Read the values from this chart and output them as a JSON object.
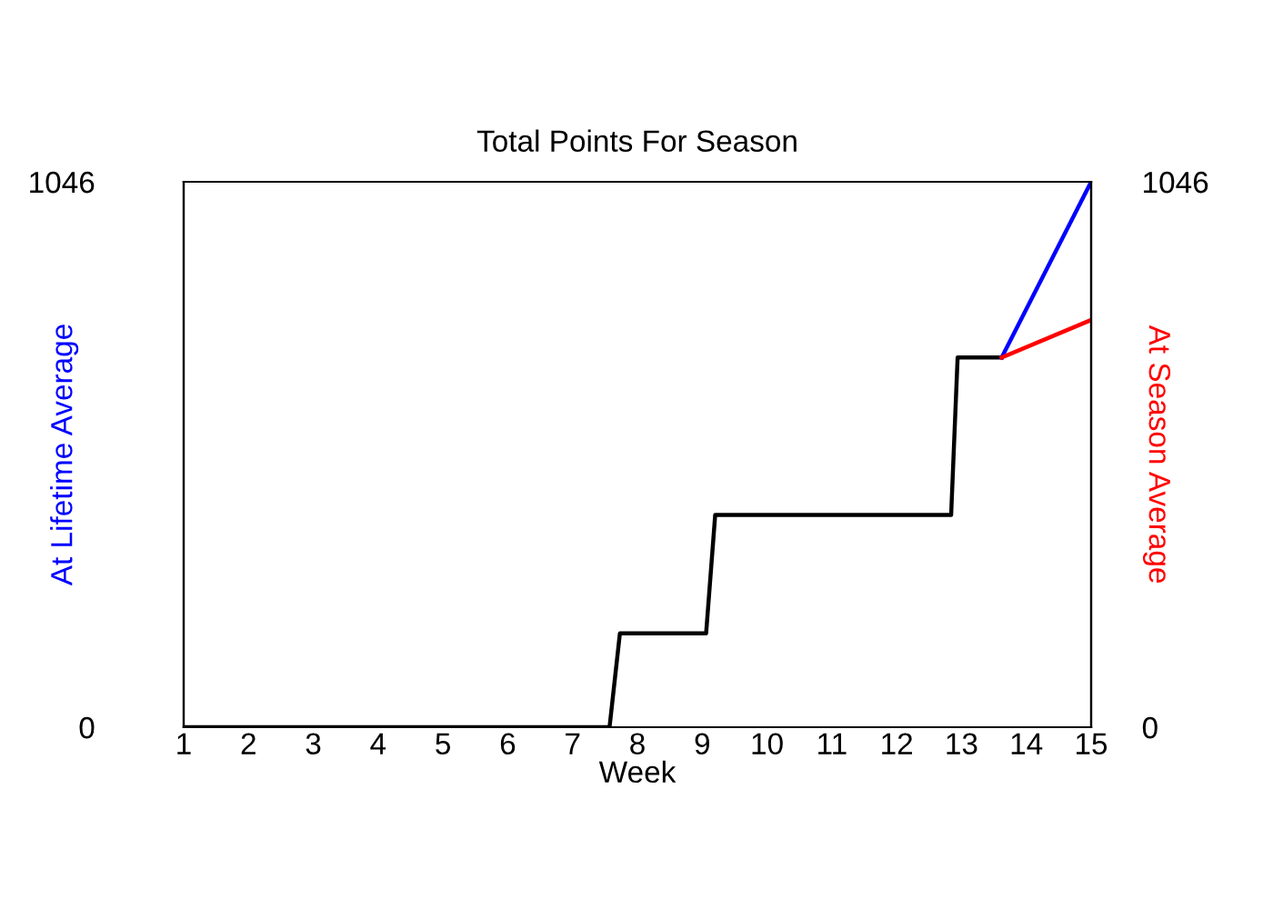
{
  "chart_data": {
    "type": "line",
    "title": "Total Points For Season",
    "xlabel": "Week",
    "ylabel": "At Lifetime Average",
    "y2label": "At Season Average",
    "series": [
      {
        "color": "#000000",
        "x": [
          1,
          7.57,
          7.73,
          9.06,
          9.2,
          12.84,
          12.94,
          13.62
        ],
        "values": [
          0,
          0,
          180,
          180,
          407,
          407,
          709,
          709
        ]
      },
      {
        "color": "#0000ff",
        "x": [
          13.62,
          15
        ],
        "values": [
          709,
          1046
        ]
      },
      {
        "color": "#ff0000",
        "axis": "y2",
        "x": [
          13.62,
          15
        ],
        "values": [
          709,
          781
        ]
      }
    ],
    "xlim": [
      1,
      15
    ],
    "xticks": [
      1,
      2,
      3,
      4,
      5,
      6,
      7,
      8,
      9,
      10,
      11,
      12,
      13,
      14,
      15
    ],
    "ylim": [
      0,
      1046
    ],
    "yticks": [
      0,
      1046
    ],
    "y2lim": [
      0,
      1046
    ],
    "y2ticks": [
      0,
      1046
    ],
    "grid": false,
    "legend": false
  }
}
